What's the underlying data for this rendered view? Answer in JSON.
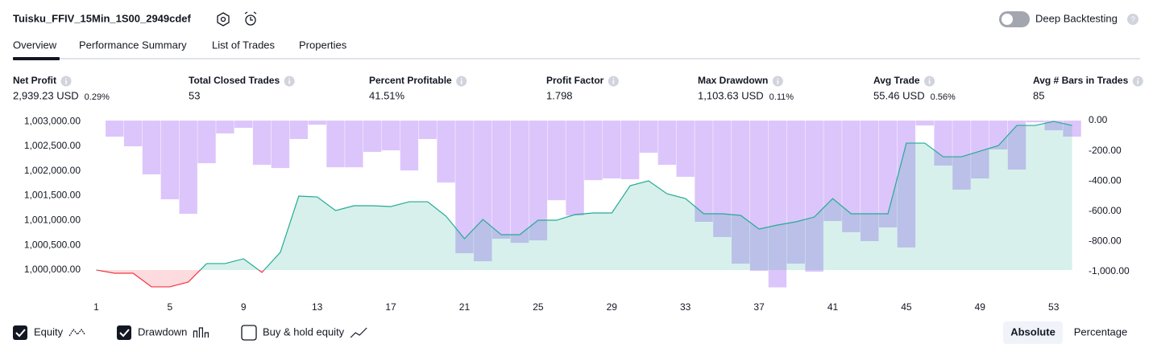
{
  "header": {
    "title": "Tuisku_FFIV_15Min_1S00_2949cdef",
    "toggle_label": "Deep Backtesting"
  },
  "tabs": [
    "Overview",
    "Performance Summary",
    "List of Trades",
    "Properties"
  ],
  "metrics": [
    {
      "label": "Net Profit",
      "value": "2,939.23 USD",
      "percent": "0.29%",
      "color": "#089981"
    },
    {
      "label": "Total Closed Trades",
      "value": "53"
    },
    {
      "label": "Percent Profitable",
      "value": "41.51%",
      "color": "#089981"
    },
    {
      "label": "Profit Factor",
      "value": "1.798",
      "color": "#089981"
    },
    {
      "label": "Max Drawdown",
      "value": "1,103.63 USD",
      "percent": "0.11%",
      "color": "#f23645"
    },
    {
      "label": "Avg Trade",
      "value": "55.46 USD",
      "percent": "0.56%",
      "color": "#089981"
    },
    {
      "label": "Avg # Bars in Trades",
      "value": "85"
    }
  ],
  "chart_data": {
    "type": "combo",
    "x": [
      1,
      2,
      3,
      4,
      5,
      6,
      7,
      8,
      9,
      10,
      11,
      12,
      13,
      14,
      15,
      16,
      17,
      18,
      19,
      20,
      21,
      22,
      23,
      24,
      25,
      26,
      27,
      28,
      29,
      30,
      31,
      32,
      33,
      34,
      35,
      36,
      37,
      38,
      39,
      40,
      41,
      42,
      43,
      44,
      45,
      46,
      47,
      48,
      49,
      50,
      51,
      52,
      53,
      54
    ],
    "xlim": [
      0.5,
      54.5
    ],
    "xticks": [
      1,
      5,
      9,
      13,
      17,
      21,
      25,
      29,
      33,
      37,
      41,
      45,
      49,
      53
    ],
    "ylim": [
      999610,
      1003050
    ],
    "yticks": [
      {
        "value": 1000000,
        "label": "1,000,000.00"
      },
      {
        "value": 1000500,
        "label": "1,000,500.00"
      },
      {
        "value": 1001000,
        "label": "1,001,000.00"
      },
      {
        "value": 1001500,
        "label": "1,001,500.00"
      },
      {
        "value": 1002000,
        "label": "1,002,000.00"
      },
      {
        "value": 1002500,
        "label": "1,002,500.00"
      },
      {
        "value": 1003000,
        "label": "1,003,000.00"
      }
    ],
    "y2lim": [
      -1117,
      11
    ],
    "y2ticks": [
      {
        "value": 0,
        "label": "0.00"
      },
      {
        "value": -200,
        "label": "-200.00"
      },
      {
        "value": -400,
        "label": "-400.00"
      },
      {
        "value": -600,
        "label": "-600.00"
      },
      {
        "value": -800,
        "label": "-800.00"
      },
      {
        "value": -1000,
        "label": "-1,000.00"
      }
    ],
    "series": [
      {
        "type": "bar",
        "axis": "y2",
        "color": "#b98cf7",
        "values": [
          0,
          -106,
          -170,
          -356,
          -521,
          -617,
          -282,
          -85,
          -48,
          -293,
          -314,
          -122,
          -27,
          -309,
          -309,
          -207,
          -197,
          -330,
          -122,
          -410,
          -878,
          -931,
          -782,
          -809,
          -793,
          -527,
          -628,
          -394,
          -383,
          -388,
          -213,
          -293,
          -372,
          -670,
          -771,
          -947,
          -995,
          -1104,
          -947,
          -1000,
          -665,
          -739,
          -798,
          -707,
          -840,
          -32,
          -298,
          -457,
          -383,
          -191,
          -324,
          -11,
          -64,
          -106
        ]
      },
      {
        "type": "area",
        "color": "#22ab94",
        "negative_color": "#f23645",
        "values": [
          1000000,
          999935,
          999935,
          999660,
          999660,
          999757,
          1000130,
          1000130,
          1000227,
          999951,
          1000357,
          1001492,
          1001475,
          1001200,
          1001297,
          1001297,
          1001281,
          1001378,
          1001378,
          1001086,
          1000632,
          1001021,
          1000713,
          1000713,
          1001005,
          1001005,
          1001119,
          1001151,
          1001151,
          1001703,
          1001800,
          1001540,
          1001443,
          1001135,
          1001135,
          1001103,
          1000827,
          1000908,
          1000973,
          1001070,
          1001443,
          1001135,
          1001135,
          1001135,
          1002562,
          1002562,
          1002286,
          1002286,
          1002400,
          1002513,
          1002919,
          1002919,
          1003000,
          1002919
        ]
      }
    ]
  },
  "legend": [
    {
      "label": "Equity",
      "checked": true
    },
    {
      "label": "Drawdown",
      "checked": true
    },
    {
      "label": "Buy & hold equity",
      "checked": false
    }
  ],
  "modes": [
    "Absolute",
    "Percentage"
  ]
}
